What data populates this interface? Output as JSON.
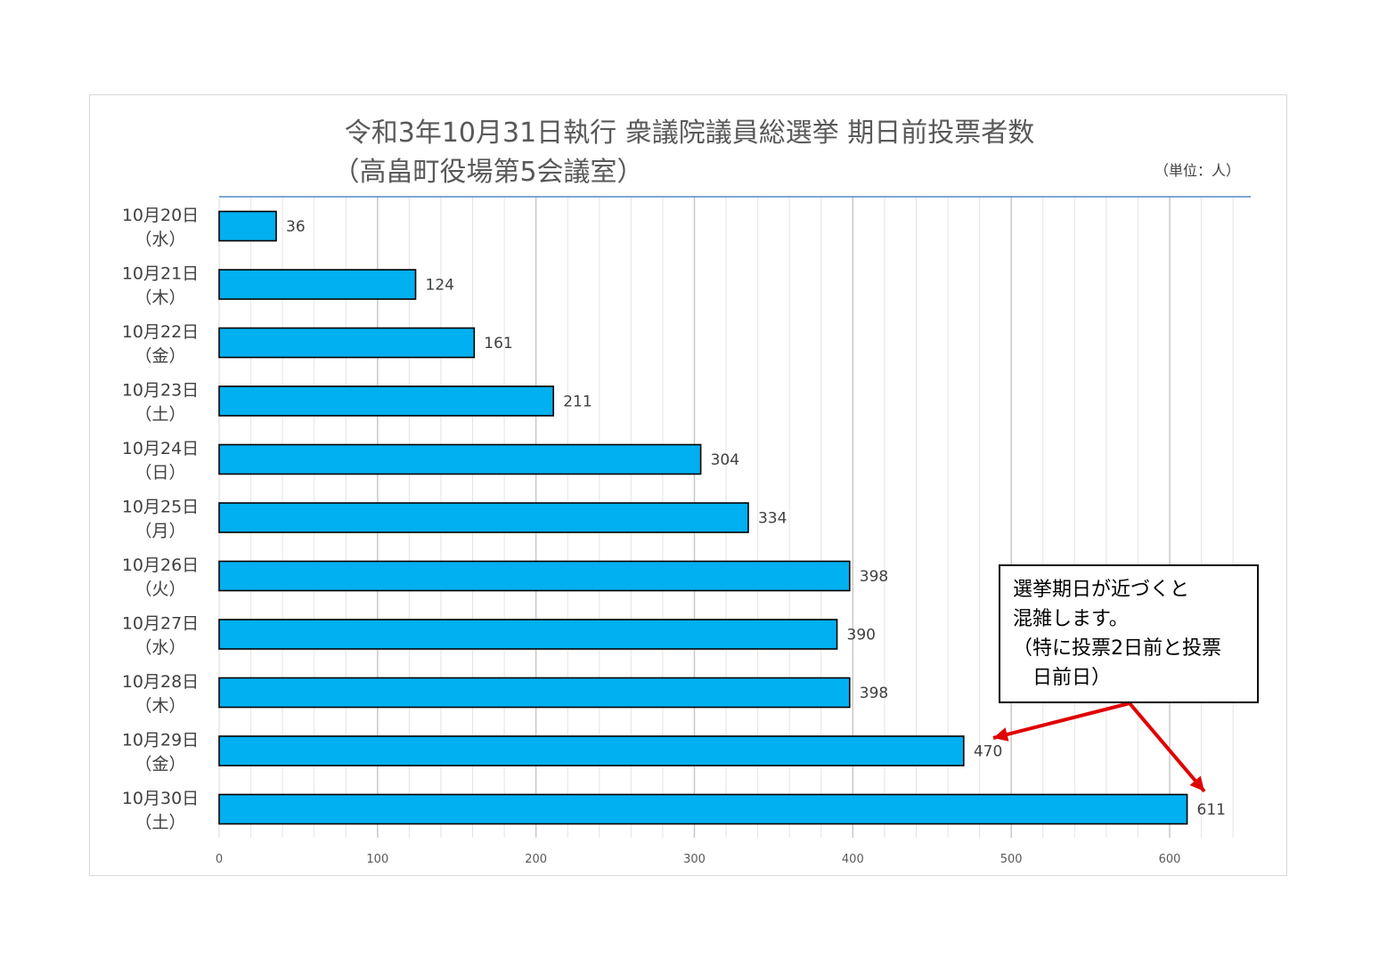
{
  "chart_data": {
    "type": "bar",
    "orientation": "horizontal",
    "title": "令和3年10月31日執行 衆議院議員総選挙 期日前投票者数",
    "subtitle": "（高畠町役場第5会議室）",
    "unit_note": "（単位：人）",
    "categories": [
      {
        "date": "10月20日",
        "day": "（水）"
      },
      {
        "date": "10月21日",
        "day": "（木）"
      },
      {
        "date": "10月22日",
        "day": "（金）"
      },
      {
        "date": "10月23日",
        "day": "（土）"
      },
      {
        "date": "10月24日",
        "day": "（日）"
      },
      {
        "date": "10月25日",
        "day": "（月）"
      },
      {
        "date": "10月26日",
        "day": "（火）"
      },
      {
        "date": "10月27日",
        "day": "（水）"
      },
      {
        "date": "10月28日",
        "day": "（木）"
      },
      {
        "date": "10月29日",
        "day": "（金）"
      },
      {
        "date": "10月30日",
        "day": "（土）"
      }
    ],
    "values": [
      36,
      124,
      161,
      211,
      304,
      334,
      398,
      390,
      398,
      470,
      611
    ],
    "xlim": [
      0,
      650
    ],
    "x_ticks": [
      0,
      100,
      200,
      300,
      400,
      500,
      600
    ],
    "grid": true,
    "bar_color": "#00b0f0",
    "bar_edge_color": "#000000",
    "annotation": {
      "lines": [
        "選挙期日が近づくと",
        "混雑します。",
        "（特に投票2日前と投票",
        "　日前日）"
      ],
      "arrow_color": "#e00000",
      "points_to": [
        "10月29日",
        "10月30日"
      ]
    }
  }
}
